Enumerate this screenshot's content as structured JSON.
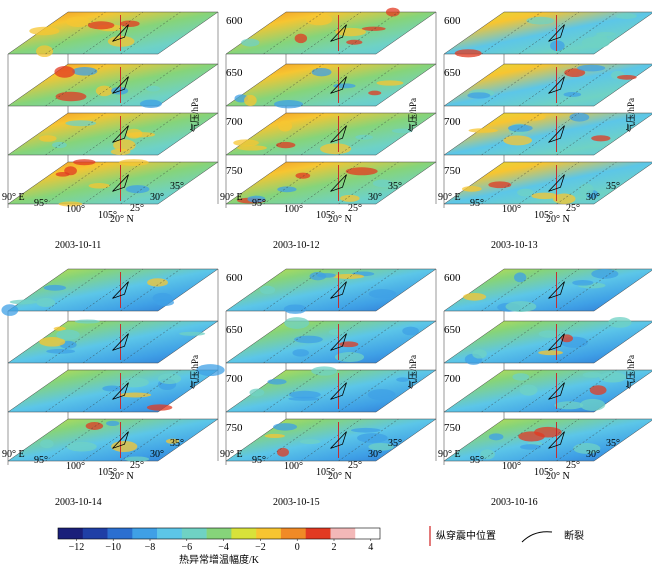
{
  "chart_data": {
    "type": "heatmap",
    "title": "",
    "pressure_levels": [
      "600",
      "650",
      "700",
      "750"
    ],
    "pressure_axis_label": "气压/hPa",
    "lon_ticks": [
      "90° E",
      "95°",
      "100°",
      "105°"
    ],
    "lat_ticks": [
      "20° N",
      "25°",
      "30°",
      "35°"
    ],
    "panels": [
      {
        "date": "2003-10-11",
        "warm_level": 0.75,
        "cold_level": 0.15
      },
      {
        "date": "2003-10-12",
        "warm_level": 0.55,
        "cold_level": 0.45
      },
      {
        "date": "2003-10-13",
        "warm_level": 0.45,
        "cold_level": 0.55
      },
      {
        "date": "2003-10-14",
        "warm_level": 0.3,
        "cold_level": 0.75
      },
      {
        "date": "2003-10-15",
        "warm_level": 0.15,
        "cold_level": 0.7
      },
      {
        "date": "2003-10-16",
        "warm_level": 0.25,
        "cold_level": 0.65
      }
    ],
    "colorbar": {
      "label": "热异常增温幅度/K",
      "ticks": [
        "−12",
        "−10",
        "−8",
        "−6",
        "−4",
        "−2",
        "0",
        "2",
        "4"
      ],
      "range": [
        -13,
        4.5
      ],
      "colors": [
        "#1a1f7a",
        "#1f3fa6",
        "#2b6fd0",
        "#3fa0e6",
        "#5cc6e8",
        "#6fd2c4",
        "#86d47a",
        "#d8e23a",
        "#f7c531",
        "#f08a26",
        "#e23a22",
        "#f3b8b8",
        "#ffffff"
      ]
    },
    "legend": {
      "epicenter_label": "纵穿震中位置",
      "fault_label": "断裂",
      "epicenter_color": "#d02020"
    }
  }
}
